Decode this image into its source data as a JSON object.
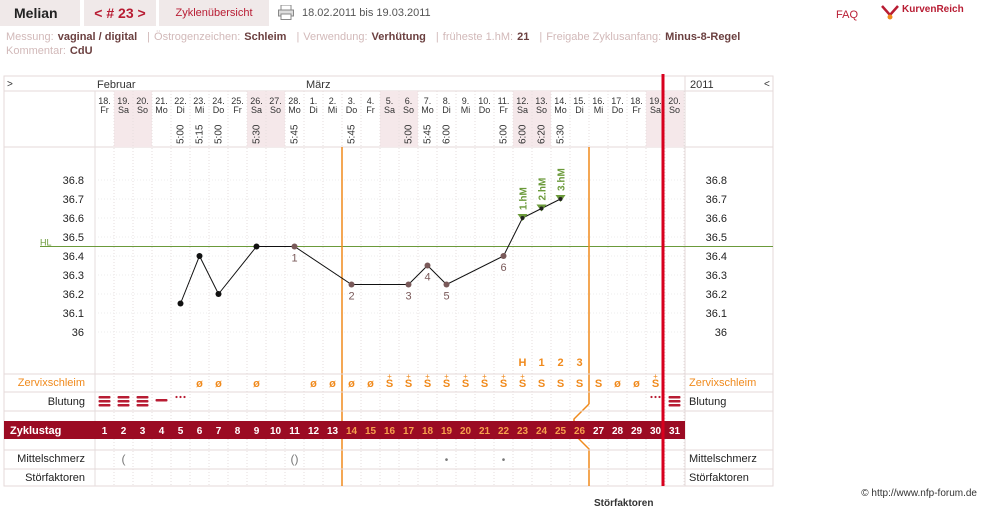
{
  "header": {
    "user": "Melian",
    "cycle_nav": "< # 23 >",
    "overview_tab": "Zyklenübersicht",
    "date_range": "18.02.2011 bis 19.03.2011",
    "faq": "FAQ",
    "logo_text": "KurvenReich"
  },
  "meta": {
    "row1": [
      {
        "key": "Messung:",
        "value": "vaginal / digital"
      },
      {
        "key": "Östrogenzeichen:",
        "value": "Schleim"
      },
      {
        "key": "Verwendung:",
        "value": "Verhütung"
      },
      {
        "key": "früheste 1.hM:",
        "value": "21"
      },
      {
        "key": "Freigabe Zyklusanfang:",
        "value": "Minus-8-Regel"
      }
    ],
    "row2": [
      {
        "key": "Kommentar:",
        "value": "CdU"
      }
    ]
  },
  "chart": {
    "nav_left": ">",
    "nav_right": "<",
    "year": "2011",
    "months": [
      {
        "label": "Februar",
        "day_index": 0
      },
      {
        "label": "März",
        "day_index": 11
      }
    ],
    "days": [
      {
        "date": "18.",
        "wd": "Fr",
        "time": "",
        "we": false
      },
      {
        "date": "19.",
        "wd": "Sa",
        "time": "",
        "we": true
      },
      {
        "date": "20.",
        "wd": "So",
        "time": "",
        "we": true
      },
      {
        "date": "21.",
        "wd": "Mo",
        "time": "",
        "we": false
      },
      {
        "date": "22.",
        "wd": "Di",
        "time": "5:00",
        "we": false
      },
      {
        "date": "23.",
        "wd": "Mi",
        "time": "5:15",
        "we": false
      },
      {
        "date": "24.",
        "wd": "Do",
        "time": "5:00",
        "we": false
      },
      {
        "date": "25.",
        "wd": "Fr",
        "time": "",
        "we": false
      },
      {
        "date": "26.",
        "wd": "Sa",
        "time": "5:30",
        "we": true
      },
      {
        "date": "27.",
        "wd": "So",
        "time": "",
        "we": true
      },
      {
        "date": "28.",
        "wd": "Mo",
        "time": "5:45",
        "we": false
      },
      {
        "date": "1.",
        "wd": "Di",
        "time": "",
        "we": false
      },
      {
        "date": "2.",
        "wd": "Mi",
        "time": "",
        "we": false
      },
      {
        "date": "3.",
        "wd": "Do",
        "time": "5:45",
        "we": false
      },
      {
        "date": "4.",
        "wd": "Fr",
        "time": "",
        "we": false
      },
      {
        "date": "5.",
        "wd": "Sa",
        "time": "",
        "we": true
      },
      {
        "date": "6.",
        "wd": "So",
        "time": "5:00",
        "we": true
      },
      {
        "date": "7.",
        "wd": "Mo",
        "time": "5:45",
        "we": false
      },
      {
        "date": "8.",
        "wd": "Di",
        "time": "6:00",
        "we": false
      },
      {
        "date": "9.",
        "wd": "Mi",
        "time": "",
        "we": false
      },
      {
        "date": "10.",
        "wd": "Do",
        "time": "",
        "we": false
      },
      {
        "date": "11.",
        "wd": "Fr",
        "time": "5:00",
        "we": false
      },
      {
        "date": "12.",
        "wd": "Sa",
        "time": "6:00",
        "we": true
      },
      {
        "date": "13.",
        "wd": "So",
        "time": "6:20",
        "we": true
      },
      {
        "date": "14.",
        "wd": "Mo",
        "time": "5:30",
        "we": false
      },
      {
        "date": "15.",
        "wd": "Di",
        "time": "",
        "we": false
      },
      {
        "date": "16.",
        "wd": "Mi",
        "time": "",
        "we": false
      },
      {
        "date": "17.",
        "wd": "Do",
        "time": "",
        "we": false
      },
      {
        "date": "18.",
        "wd": "Fr",
        "time": "",
        "we": false
      },
      {
        "date": "19.",
        "wd": "Sa",
        "time": "",
        "we": true
      },
      {
        "date": "20.",
        "wd": "So",
        "time": "",
        "we": true
      }
    ],
    "y_ticks": [
      "36.8",
      "36.7",
      "36.6",
      "36.5",
      "36.4",
      "36.3",
      "36.2",
      "36.1",
      "36"
    ],
    "hl_label": "HL",
    "hl_value": 36.45,
    "temps": [
      {
        "day": 4,
        "t": 36.15
      },
      {
        "day": 5,
        "t": 36.4
      },
      {
        "day": 6,
        "t": 36.2
      },
      {
        "day": 8,
        "t": 36.45
      },
      {
        "day": 10,
        "t": 36.45,
        "label": "1"
      },
      {
        "day": 13,
        "t": 36.25,
        "label": "2"
      },
      {
        "day": 16,
        "t": 36.25,
        "label": "3"
      },
      {
        "day": 17,
        "t": 36.35,
        "label": "4"
      },
      {
        "day": 18,
        "t": 36.25,
        "label": "5"
      },
      {
        "day": 21,
        "t": 36.4,
        "label": "6"
      },
      {
        "day": 22,
        "t": 36.6,
        "hm": "1.hM"
      },
      {
        "day": 23,
        "t": 36.65,
        "hm": "2.hM"
      },
      {
        "day": 24,
        "t": 36.7,
        "hm": "3.hM"
      }
    ],
    "hm_counts": [
      {
        "day": 22,
        "label": "H"
      },
      {
        "day": 23,
        "label": "1"
      },
      {
        "day": 24,
        "label": "2"
      },
      {
        "day": 25,
        "label": "3"
      }
    ],
    "rows": {
      "zervix": "Zervixschleim",
      "blutung": "Blutung",
      "zyklustag": "Zyklustag",
      "mittelschmerz": "Mittelschmerz",
      "stoerfaktoren": "Störfaktoren"
    },
    "zervix_values": [
      "",
      "",
      "",
      "",
      "",
      "ø",
      "ø",
      "",
      "ø",
      "",
      "",
      "ø",
      "ø",
      "ø",
      "ø",
      "S+",
      "S+",
      "S+",
      "S+",
      "S+",
      "S+",
      "S+",
      "S+",
      "S",
      "S",
      "S",
      "S",
      "ø",
      "ø",
      "S+",
      ""
    ],
    "blutung_values": [
      "heavy",
      "heavy",
      "heavy",
      "light",
      "spot",
      "",
      "",
      "",
      "",
      "",
      "",
      "",
      "",
      "",
      "",
      "",
      "",
      "",
      "",
      "",
      "",
      "",
      "",
      "",
      "",
      "",
      "",
      "",
      "",
      "spot",
      "heavy"
    ],
    "zyklustag_values": [
      "1",
      "2",
      "3",
      "4",
      "5",
      "6",
      "7",
      "8",
      "9",
      "10",
      "11",
      "12",
      "13",
      "14",
      "15",
      "16",
      "17",
      "18",
      "19",
      "20",
      "21",
      "22",
      "23",
      "24",
      "25",
      "26",
      "27",
      "28",
      "29",
      "30",
      "31"
    ],
    "mittelschmerz_values": [
      "",
      "(",
      "",
      "",
      "",
      "",
      "",
      "",
      "",
      "",
      "()",
      "",
      "",
      "",
      "",
      "",
      "",
      "",
      "•",
      "",
      "",
      "•",
      "",
      "",
      "",
      "",
      "",
      "",
      "",
      "",
      ""
    ]
  },
  "footer": {
    "copyright": "© http://www.nfp-forum.de",
    "cut_text": "Störfaktoren"
  },
  "colors": {
    "accent": "#b81c33",
    "orange": "#f08a1c",
    "green": "#6b9a3a",
    "dark_red_band": "#9b0b23"
  }
}
